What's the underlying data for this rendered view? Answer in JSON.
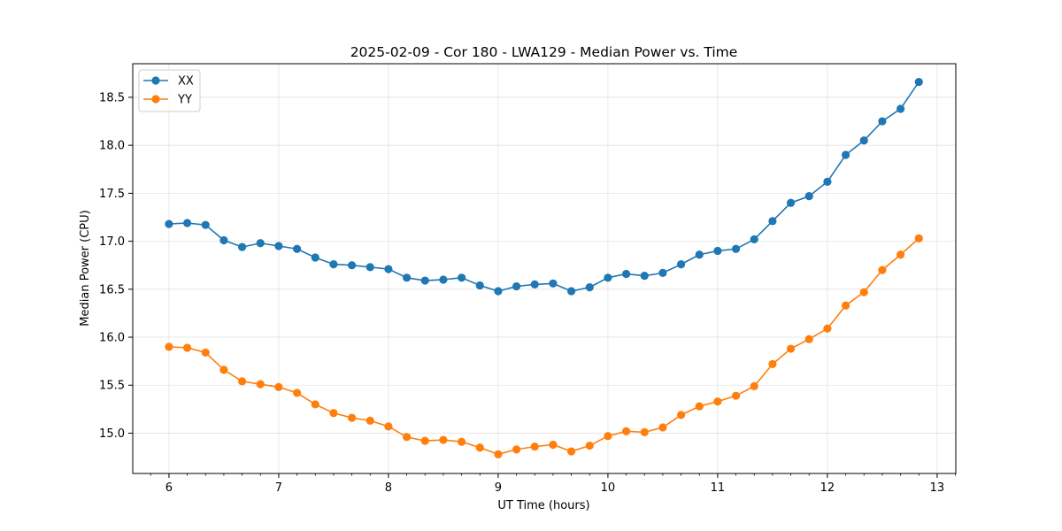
{
  "chart_data": {
    "type": "line",
    "title": "2025-02-09 - Cor 180 - LWA129 - Median Power vs. Time",
    "xlabel": "UT Time (hours)",
    "ylabel": "Median Power (CPU)",
    "xlim": [
      5.67,
      13.17
    ],
    "ylim": [
      14.58,
      18.85
    ],
    "xticks": [
      6,
      7,
      8,
      9,
      10,
      11,
      12,
      13
    ],
    "xtick_labels": [
      "6",
      "7",
      "8",
      "9",
      "10",
      "11",
      "12",
      "13"
    ],
    "yticks": [
      15.0,
      15.5,
      16.0,
      16.5,
      17.0,
      17.5,
      18.0,
      18.5
    ],
    "ytick_labels": [
      "15.0",
      "15.5",
      "16.0",
      "16.5",
      "17.0",
      "17.5",
      "18.0",
      "18.5"
    ],
    "grid": true,
    "legend_position": "top-left",
    "x": [
      6.0,
      6.1667,
      6.3333,
      6.5,
      6.6667,
      6.8333,
      7.0,
      7.1667,
      7.3333,
      7.5,
      7.6667,
      7.8333,
      8.0,
      8.1667,
      8.3333,
      8.5,
      8.6667,
      8.8333,
      9.0,
      9.1667,
      9.3333,
      9.5,
      9.6667,
      9.8333,
      10.0,
      10.1667,
      10.3333,
      10.5,
      10.6667,
      10.8333,
      11.0,
      11.1667,
      11.3333,
      11.5,
      11.6667,
      11.8333,
      12.0,
      12.1667,
      12.3333,
      12.5,
      12.6667,
      12.8333
    ],
    "series": [
      {
        "name": "XX",
        "color": "#1f77b4",
        "values": [
          17.18,
          17.19,
          17.17,
          17.01,
          16.94,
          16.98,
          16.95,
          16.92,
          16.83,
          16.76,
          16.75,
          16.73,
          16.71,
          16.62,
          16.59,
          16.6,
          16.62,
          16.54,
          16.48,
          16.53,
          16.55,
          16.56,
          16.48,
          16.52,
          16.62,
          16.66,
          16.64,
          16.67,
          16.76,
          16.86,
          16.9,
          16.92,
          17.02,
          17.21,
          17.4,
          17.47,
          17.62,
          17.9,
          18.05,
          18.25,
          18.38,
          18.66
        ]
      },
      {
        "name": "YY",
        "color": "#ff7f0e",
        "values": [
          15.9,
          15.89,
          15.84,
          15.66,
          15.54,
          15.51,
          15.48,
          15.42,
          15.3,
          15.21,
          15.16,
          15.13,
          15.07,
          14.96,
          14.92,
          14.93,
          14.91,
          14.85,
          14.78,
          14.83,
          14.86,
          14.88,
          14.81,
          14.87,
          14.97,
          15.02,
          15.01,
          15.06,
          15.19,
          15.28,
          15.33,
          15.39,
          15.49,
          15.72,
          15.88,
          15.98,
          16.09,
          16.33,
          16.47,
          16.7,
          16.86,
          17.03
        ]
      }
    ]
  }
}
